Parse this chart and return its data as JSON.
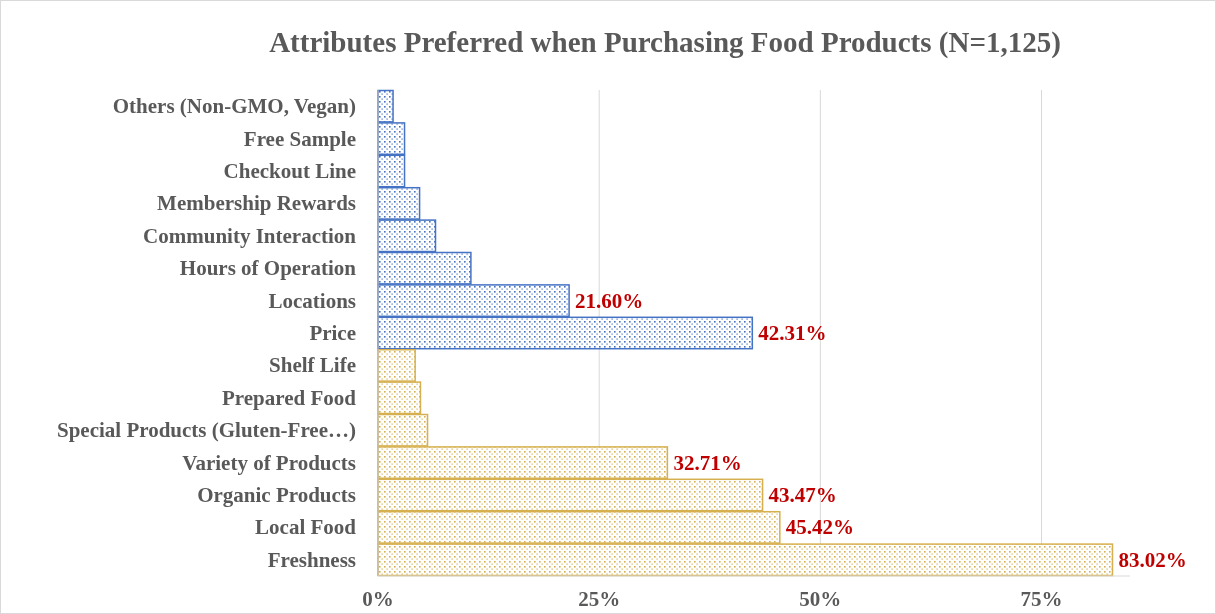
{
  "chart_data": {
    "type": "bar",
    "orientation": "horizontal",
    "title": "Attributes Preferred when Purchasing Food Products (N=1,125)",
    "categories": [
      "Others (Non-GMO, Vegan)",
      "Free Sample",
      "Checkout Line",
      "Membership Rewards",
      "Community Interaction",
      "Hours of Operation",
      "Locations",
      "Price",
      "Shelf Life",
      "Prepared Food",
      "Special Products (Gluten-Free…)",
      "Variety of Products",
      "Organic Products",
      "Local Food",
      "Freshness"
    ],
    "values": [
      1.7,
      3.0,
      3.0,
      4.7,
      6.5,
      10.5,
      21.6,
      42.31,
      4.2,
      4.8,
      5.6,
      32.71,
      43.47,
      45.42,
      83.02
    ],
    "colors": [
      "#4472c4",
      "#4472c4",
      "#4472c4",
      "#4472c4",
      "#4472c4",
      "#4472c4",
      "#4472c4",
      "#4472c4",
      "#d6b04f",
      "#d6b04f",
      "#d6b04f",
      "#d6b04f",
      "#d6b04f",
      "#d6b04f",
      "#d6b04f"
    ],
    "value_labels": [
      null,
      null,
      null,
      null,
      null,
      null,
      "21.60%",
      "42.31%",
      null,
      null,
      null,
      "32.71%",
      "43.47%",
      "45.42%",
      "83.02%"
    ],
    "xlim": [
      0,
      85
    ],
    "xticks": [
      {
        "value": 0,
        "label": "0%"
      },
      {
        "value": 25,
        "label": "25%"
      },
      {
        "value": 50,
        "label": "50%"
      },
      {
        "value": 75,
        "label": "75%"
      }
    ],
    "grid": "x"
  }
}
